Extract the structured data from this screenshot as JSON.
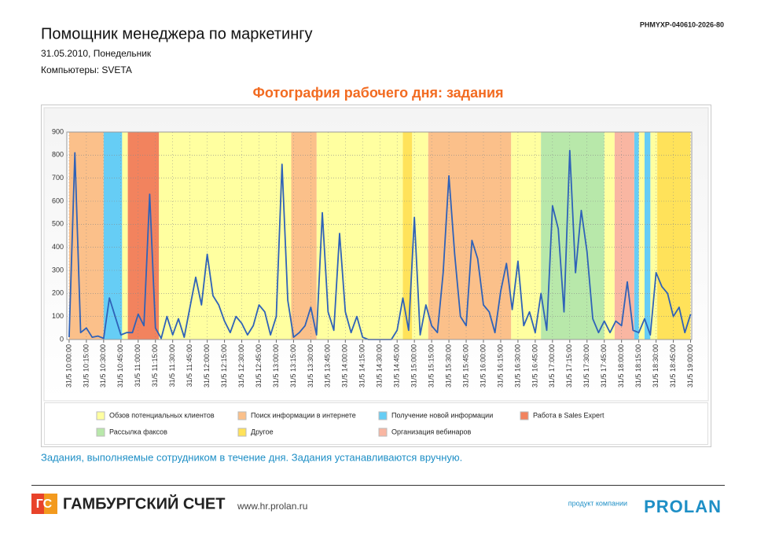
{
  "header": {
    "code": "PHMYXP-040610-2026-80",
    "title": "Помощник менеджера по маркетингу",
    "date": "31.05.2010, Понедельник",
    "computers": "Компьютеры: SVETA"
  },
  "chart_data": {
    "type": "line",
    "title": "Фотография рабочего дня: задания",
    "ylim": [
      0,
      900
    ],
    "yticks": [
      0,
      100,
      200,
      300,
      400,
      500,
      600,
      700,
      800,
      900
    ],
    "xlim": [
      "31/5 09:58:00",
      "31/5 19:01:00"
    ],
    "xticks": [
      "31/5 10:00:00",
      "31/5 10:15:00",
      "31/5 10:30:00",
      "31/5 10:45:00",
      "31/5 11:00:00",
      "31/5 11:15:00",
      "31/5 11:30:00",
      "31/5 11:45:00",
      "31/5 12:00:00",
      "31/5 12:15:00",
      "31/5 12:30:00",
      "31/5 12:45:00",
      "31/5 13:00:00",
      "31/5 13:15:00",
      "31/5 13:30:00",
      "31/5 13:45:00",
      "31/5 14:00:00",
      "31/5 14:15:00",
      "31/5 14:30:00",
      "31/5 14:45:00",
      "31/5 15:00:00",
      "31/5 15:15:00",
      "31/5 15:30:00",
      "31/5 15:45:00",
      "31/5 16:00:00",
      "31/5 16:15:00",
      "31/5 16:30:00",
      "31/5 16:45:00",
      "31/5 17:00:00",
      "31/5 17:15:00",
      "31/5 17:30:00",
      "31/5 17:45:00",
      "31/5 18:00:00",
      "31/5 18:15:00",
      "31/5 18:30:00",
      "31/5 18:45:00",
      "31/5 19:00:00"
    ],
    "grid": true,
    "series": [
      {
        "name": "Обзов потенциальных клиентов",
        "color": "#ffffa0",
        "intervals": [
          [
            "31/5 10:46:00",
            "31/5 10:51:00"
          ],
          [
            "31/5 11:18:00",
            "31/5 13:13:00"
          ],
          [
            "31/5 13:35:00",
            "31/5 14:50:00"
          ],
          [
            "31/5 14:58:00",
            "31/5 15:12:00"
          ],
          [
            "31/5 16:24:00",
            "31/5 16:50:00"
          ],
          [
            "31/5 17:45:00",
            "31/5 17:54:00"
          ],
          [
            "31/5 18:15:00",
            "31/5 18:20:00"
          ],
          [
            "31/5 18:25:00",
            "31/5 18:31:00"
          ]
        ]
      },
      {
        "name": "Поиск информации в интернете",
        "color": "#fbc08a",
        "intervals": [
          [
            "31/5 10:00:00",
            "31/5 10:30:00"
          ],
          [
            "31/5 13:13:00",
            "31/5 13:35:00"
          ],
          [
            "31/5 15:12:00",
            "31/5 16:24:00"
          ]
        ]
      },
      {
        "name": "Получение новой информации",
        "color": "#66cdf5",
        "intervals": [
          [
            "31/5 10:30:00",
            "31/5 10:46:00"
          ],
          [
            "31/5 18:11:00",
            "31/5 18:15:00"
          ],
          [
            "31/5 18:20:00",
            "31/5 18:25:00"
          ]
        ]
      },
      {
        "name": "Работа в Sales Expert",
        "color": "#f2835e",
        "intervals": [
          [
            "31/5 10:51:00",
            "31/5 11:18:00"
          ]
        ]
      },
      {
        "name": "Рассылка факсов",
        "color": "#b8e8aa",
        "intervals": [
          [
            "31/5 16:50:00",
            "31/5 17:45:00"
          ]
        ]
      },
      {
        "name": "Другое",
        "color": "#ffe25a",
        "intervals": [
          [
            "31/5 14:50:00",
            "31/5 14:58:00"
          ],
          [
            "31/5 18:31:00",
            "31/5 19:00:00"
          ]
        ]
      },
      {
        "name": "Организация вебинаров",
        "color": "#f9b6a2",
        "intervals": [
          [
            "31/5 17:54:00",
            "31/5 18:11:00"
          ]
        ]
      }
    ],
    "line": {
      "color": "#2f62b8",
      "x": [
        "31/5 10:00:00",
        "31/5 10:05:00",
        "31/5 10:10:00",
        "31/5 10:15:00",
        "31/5 10:20:00",
        "31/5 10:25:00",
        "31/5 10:30:00",
        "31/5 10:35:00",
        "31/5 10:40:00",
        "31/5 10:45:00",
        "31/5 10:50:00",
        "31/5 10:55:00",
        "31/5 11:00:00",
        "31/5 11:05:00",
        "31/5 11:10:00",
        "31/5 11:15:00",
        "31/5 11:20:00",
        "31/5 11:25:00",
        "31/5 11:30:00",
        "31/5 11:35:00",
        "31/5 11:40:00",
        "31/5 11:45:00",
        "31/5 11:50:00",
        "31/5 11:55:00",
        "31/5 12:00:00",
        "31/5 12:05:00",
        "31/5 12:10:00",
        "31/5 12:15:00",
        "31/5 12:20:00",
        "31/5 12:25:00",
        "31/5 12:30:00",
        "31/5 12:35:00",
        "31/5 12:40:00",
        "31/5 12:45:00",
        "31/5 12:50:00",
        "31/5 12:55:00",
        "31/5 13:00:00",
        "31/5 13:05:00",
        "31/5 13:10:00",
        "31/5 13:15:00",
        "31/5 13:20:00",
        "31/5 13:25:00",
        "31/5 13:30:00",
        "31/5 13:35:00",
        "31/5 13:40:00",
        "31/5 13:45:00",
        "31/5 13:50:00",
        "31/5 13:55:00",
        "31/5 14:00:00",
        "31/5 14:05:00",
        "31/5 14:10:00",
        "31/5 14:15:00",
        "31/5 14:20:00",
        "31/5 14:25:00",
        "31/5 14:30:00",
        "31/5 14:35:00",
        "31/5 14:40:00",
        "31/5 14:45:00",
        "31/5 14:50:00",
        "31/5 14:55:00",
        "31/5 15:00:00",
        "31/5 15:05:00",
        "31/5 15:10:00",
        "31/5 15:15:00",
        "31/5 15:20:00",
        "31/5 15:25:00",
        "31/5 15:30:00",
        "31/5 15:35:00",
        "31/5 15:40:00",
        "31/5 15:45:00",
        "31/5 15:50:00",
        "31/5 15:55:00",
        "31/5 16:00:00",
        "31/5 16:05:00",
        "31/5 16:10:00",
        "31/5 16:15:00",
        "31/5 16:20:00",
        "31/5 16:25:00",
        "31/5 16:30:00",
        "31/5 16:35:00",
        "31/5 16:40:00",
        "31/5 16:45:00",
        "31/5 16:50:00",
        "31/5 16:55:00",
        "31/5 17:00:00",
        "31/5 17:05:00",
        "31/5 17:10:00",
        "31/5 17:15:00",
        "31/5 17:20:00",
        "31/5 17:25:00",
        "31/5 17:30:00",
        "31/5 17:35:00",
        "31/5 17:40:00",
        "31/5 17:45:00",
        "31/5 17:50:00",
        "31/5 17:55:00",
        "31/5 18:00:00",
        "31/5 18:05:00",
        "31/5 18:10:00",
        "31/5 18:15:00",
        "31/5 18:20:00",
        "31/5 18:25:00",
        "31/5 18:30:00",
        "31/5 18:35:00",
        "31/5 18:40:00",
        "31/5 18:45:00",
        "31/5 18:50:00",
        "31/5 18:55:00",
        "31/5 19:00:00"
      ],
      "values": [
        10,
        810,
        30,
        50,
        10,
        15,
        5,
        180,
        100,
        20,
        30,
        30,
        110,
        60,
        630,
        50,
        5,
        100,
        20,
        90,
        10,
        140,
        270,
        150,
        370,
        190,
        150,
        80,
        30,
        100,
        70,
        20,
        60,
        150,
        120,
        20,
        100,
        760,
        170,
        10,
        30,
        60,
        140,
        20,
        550,
        120,
        40,
        460,
        120,
        30,
        100,
        10,
        0,
        0,
        0,
        0,
        0,
        40,
        180,
        40,
        530,
        20,
        150,
        60,
        30,
        290,
        710,
        370,
        100,
        60,
        430,
        350,
        150,
        120,
        30,
        210,
        330,
        130,
        340,
        60,
        120,
        30,
        200,
        40,
        580,
        480,
        120,
        820,
        290,
        560,
        380,
        90,
        30,
        80,
        30,
        80,
        60,
        250,
        40,
        30,
        90,
        20,
        290,
        230,
        200,
        100,
        140,
        30,
        110
      ]
    }
  },
  "caption": "Задания, выполняемые сотрудником в течение дня. Задания устанавливаются вручную.",
  "footer": {
    "logo_mark": "ГС",
    "brand": "ГАМБУРГСКИЙ СЧЕТ",
    "url": "www.hr.prolan.ru",
    "product_of": "продукт компании",
    "company": "PROLAN"
  }
}
